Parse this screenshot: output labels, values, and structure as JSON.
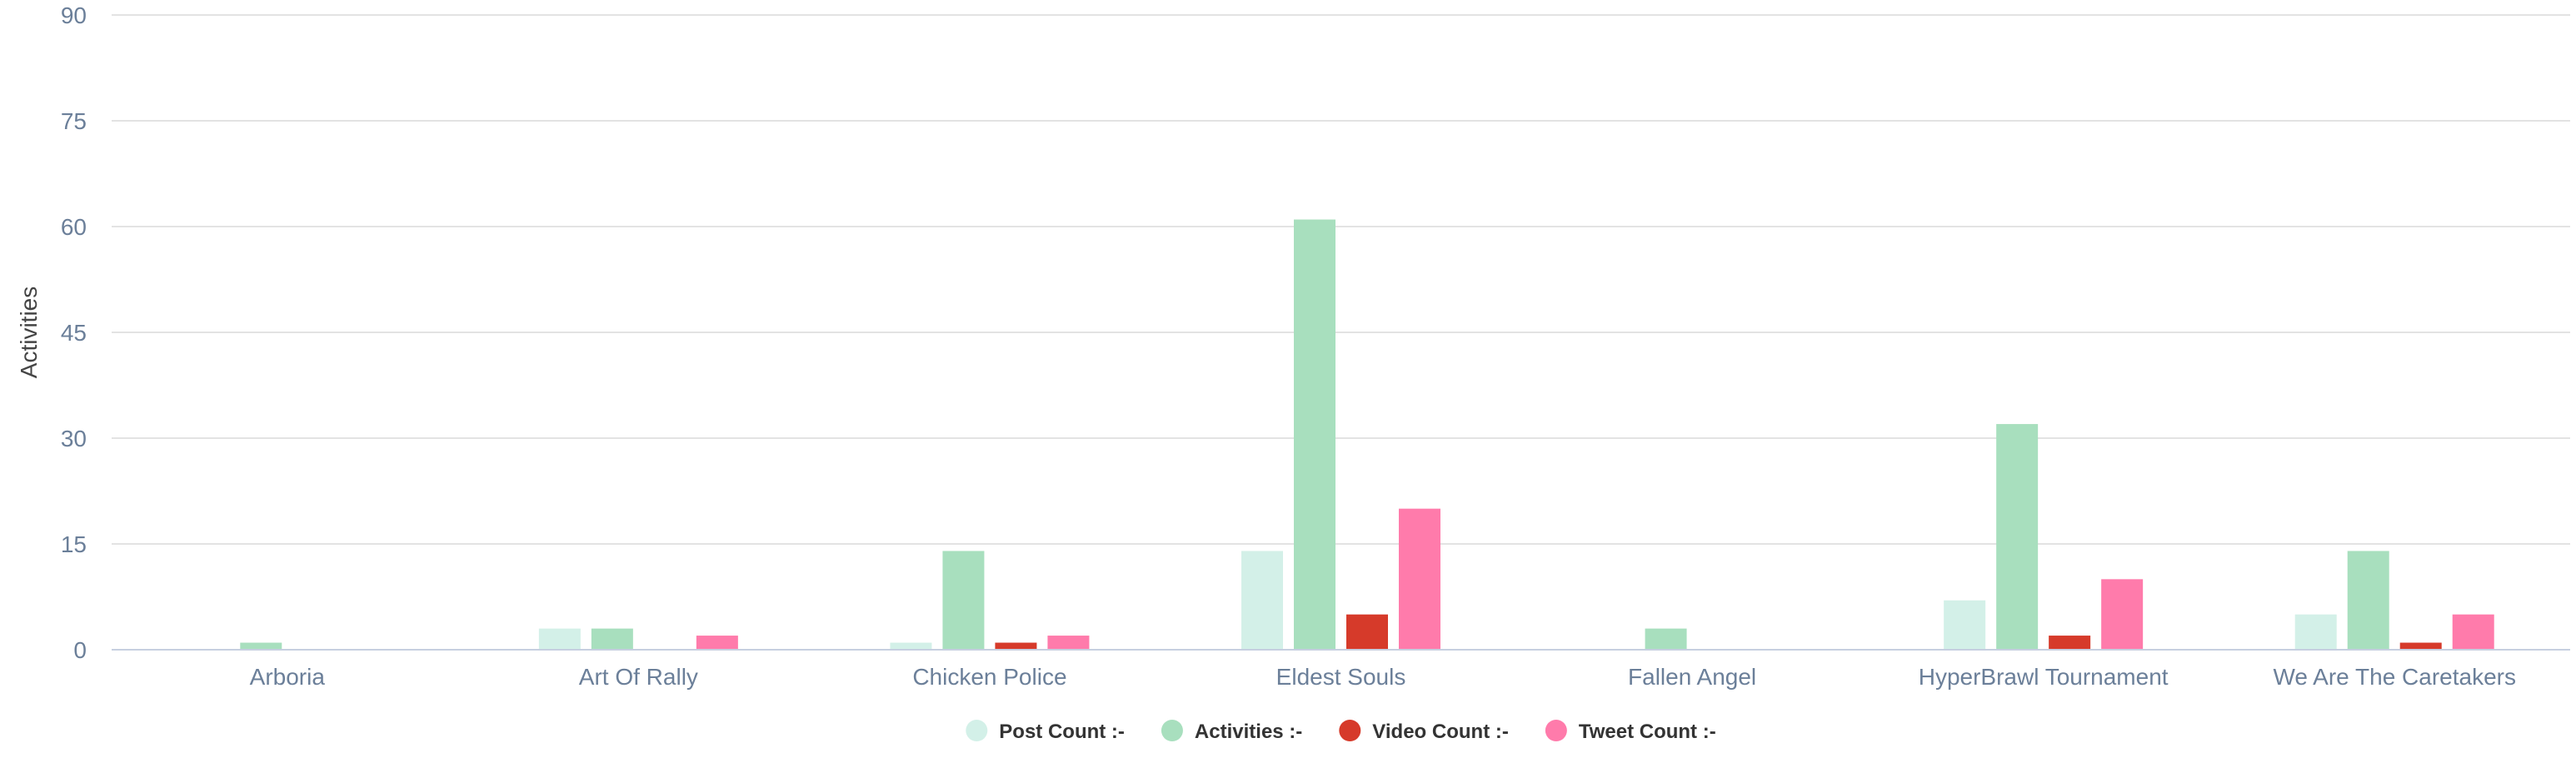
{
  "chart_data": {
    "type": "bar",
    "title": "",
    "xlabel": "",
    "ylabel": "Activities",
    "ylim": [
      0,
      90
    ],
    "yticks": [
      0,
      15,
      30,
      45,
      60,
      75,
      90
    ],
    "grid": true,
    "legend_position": "bottom-center",
    "categories": [
      "Arboria",
      "Art Of Rally",
      "Chicken Police",
      "Eldest Souls",
      "Fallen Angel",
      "HyperBrawl Tournament",
      "We Are The Caretakers"
    ],
    "series": [
      {
        "name": "Post Count :-",
        "color": "#d3f0e8",
        "values": [
          0,
          3,
          1,
          14,
          0,
          7,
          5
        ]
      },
      {
        "name": "Activities :-",
        "color": "#a8dfbe",
        "values": [
          1,
          3,
          14,
          61,
          3,
          32,
          14
        ]
      },
      {
        "name": "Video Count :-",
        "color": "#d63a2a",
        "values": [
          0,
          0,
          1,
          5,
          0,
          2,
          1
        ]
      },
      {
        "name": "Tweet Count :-",
        "color": "#ff7bab",
        "values": [
          0,
          2,
          2,
          20,
          0,
          10,
          5
        ]
      }
    ]
  }
}
